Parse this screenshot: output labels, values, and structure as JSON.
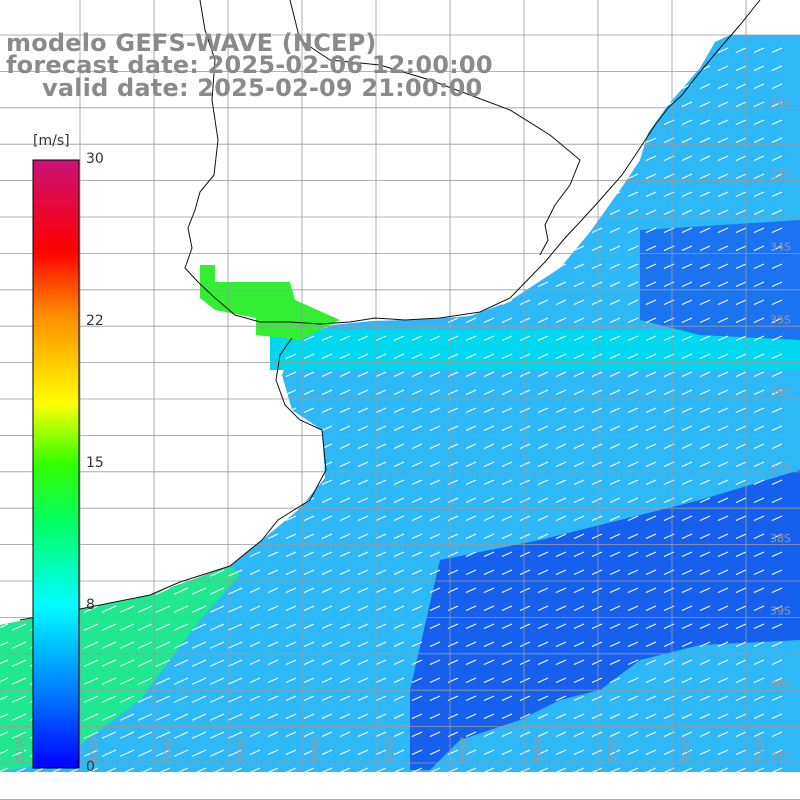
{
  "title": {
    "model": "modelo GEFS-WAVE (NCEP)",
    "forecast": "forecast date: 2025-02-06 12:00:00",
    "valid": "valid date: 2025-02-09 21:00:00"
  },
  "colorbar": {
    "units": "[m/s]",
    "ticks": [
      {
        "label": "30",
        "value": 30
      },
      {
        "label": "22",
        "value": 22
      },
      {
        "label": "15",
        "value": 15
      },
      {
        "label": "8",
        "value": 8
      },
      {
        "label": "0",
        "value": 0
      }
    ],
    "range": [
      0,
      30
    ],
    "colors": [
      "#0000ff",
      "#0077ff",
      "#00ddff",
      "#00ff66",
      "#33ff00",
      "#ffff00",
      "#ff8800",
      "#ff0000",
      "#cc1177"
    ]
  },
  "axes": {
    "lon_labels": [
      "61W",
      "60W",
      "59W",
      "58W",
      "57W",
      "56W",
      "55W",
      "54W",
      "53W",
      "52W",
      "51W"
    ],
    "lat_labels": [
      "32S",
      "33S",
      "34S",
      "35S",
      "36S",
      "37S",
      "38S",
      "39S",
      "40S",
      "41S"
    ]
  },
  "map_colors": {
    "land": "#ffffff",
    "coast": "#111111",
    "grid": "#9a9a9a",
    "arrow": "#ffffff",
    "label": "#999999"
  }
}
